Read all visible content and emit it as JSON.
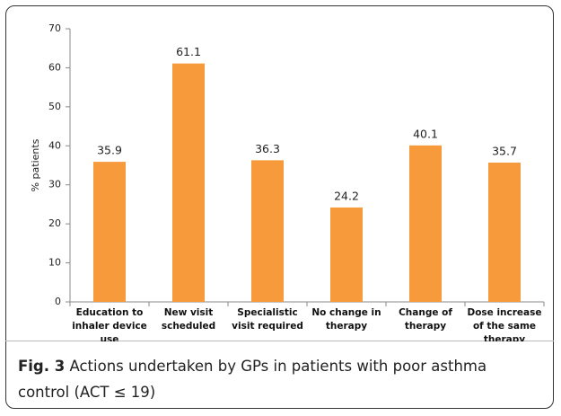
{
  "chart_data": {
    "type": "bar",
    "y_label": "% patients",
    "categories": [
      "Education to inhaler device use",
      "New visit scheduled",
      "Specialistic visit required",
      "No change in therapy",
      "Change of therapy",
      "Dose increase of the same therapy"
    ],
    "values": [
      35.9,
      61.1,
      36.3,
      24.2,
      40.1,
      35.7
    ],
    "color": "#f79a3b",
    "ylim": [
      0,
      70
    ],
    "yticks": [
      0,
      10,
      20,
      30,
      40,
      50,
      60,
      70
    ],
    "grid": false
  },
  "caption": {
    "label": "Fig. 3",
    "text": "Actions undertaken by GPs in patients with poor asthma control (ACT ≤ 19)"
  }
}
